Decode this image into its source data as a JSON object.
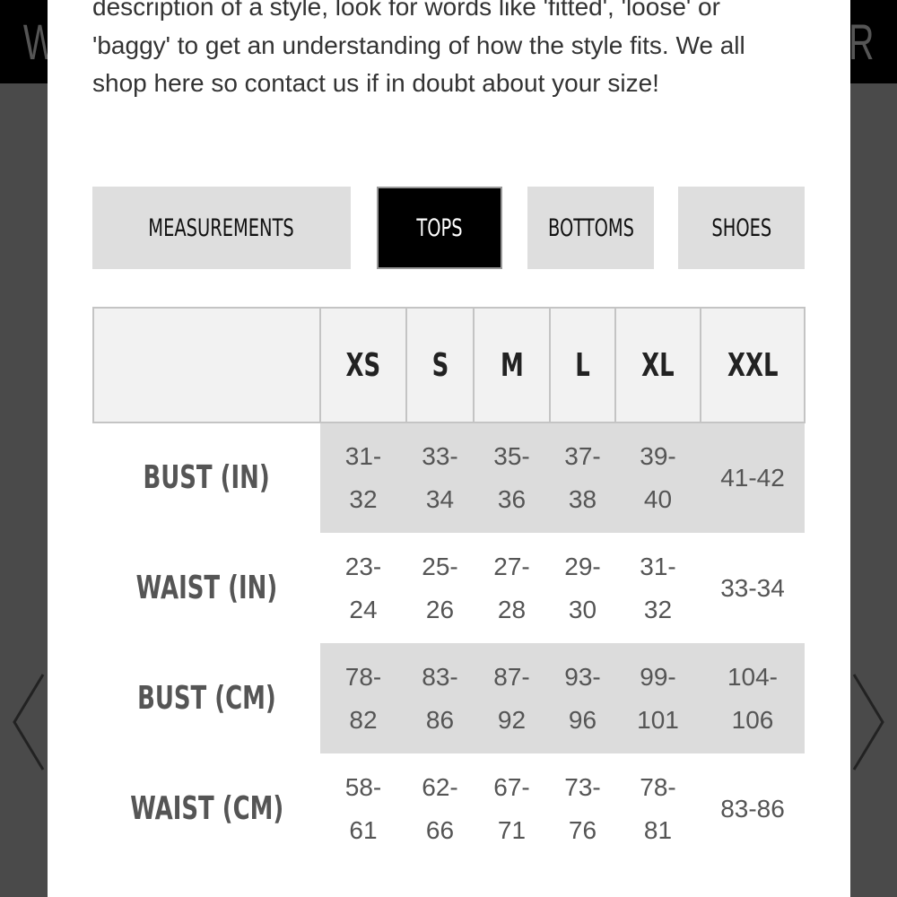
{
  "background": {
    "left_letter": "W",
    "right_letter": "R"
  },
  "intro_text": "description of a style, look for words like 'fitted', 'loose' or 'baggy' to get an understanding of how the style fits. We all shop here so contact us if in doubt about your size!",
  "tabs": [
    {
      "label": "MEASUREMENTS",
      "active": false
    },
    {
      "label": "TOPS",
      "active": true
    },
    {
      "label": "BOTTOMS",
      "active": false
    },
    {
      "label": "SHOES",
      "active": false
    }
  ],
  "table": {
    "sizes": [
      "XS",
      "S",
      "M",
      "L",
      "XL",
      "XXL"
    ],
    "rows": [
      {
        "label": "BUST (IN)",
        "values": [
          "31-32",
          "33-34",
          "35-36",
          "37-38",
          "39-40",
          "41-42"
        ]
      },
      {
        "label": "WAIST (IN)",
        "values": [
          "23-24",
          "25-26",
          "27-28",
          "29-30",
          "31-32",
          "33-34"
        ]
      },
      {
        "label": "BUST (CM)",
        "values": [
          "78-82",
          "83-86",
          "87-92",
          "93-96",
          "99-101",
          "104-106"
        ]
      },
      {
        "label": "WAIST (CM)",
        "values": [
          "58-61",
          "62-66",
          "67-71",
          "73-76",
          "78-81",
          "83-86"
        ]
      }
    ]
  },
  "colors": {
    "active_tab": "#000000",
    "tab": "#dedede",
    "shaded_row": "#dcdcdc",
    "overlay": "#4a4a4a"
  }
}
